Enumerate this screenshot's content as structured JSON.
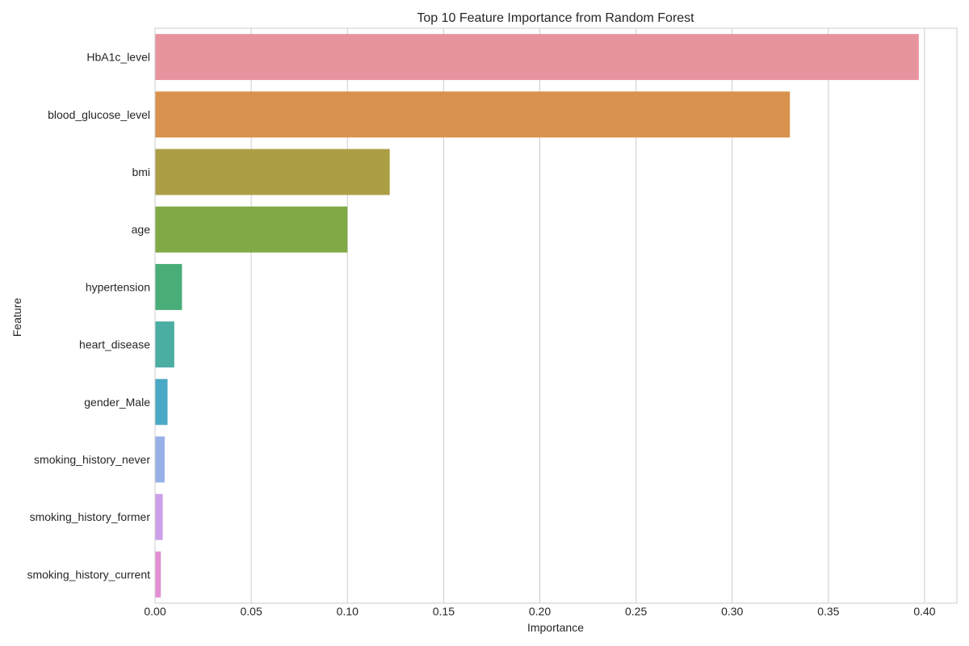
{
  "chart_data": {
    "type": "bar",
    "orientation": "horizontal",
    "title": "Top 10 Feature Importance from Random Forest",
    "xlabel": "Importance",
    "ylabel": "Feature",
    "xlim": [
      0,
      0.4168
    ],
    "xticks": [
      0.0,
      0.05,
      0.1,
      0.15,
      0.2,
      0.25,
      0.3,
      0.35,
      0.4
    ],
    "xtick_labels": [
      "0.00",
      "0.05",
      "0.10",
      "0.15",
      "0.20",
      "0.25",
      "0.30",
      "0.35",
      "0.40"
    ],
    "grid": "vertical",
    "categories": [
      "HbA1c_level",
      "blood_glucose_level",
      "bmi",
      "age",
      "hypertension",
      "heart_disease",
      "gender_Male",
      "smoking_history_never",
      "smoking_history_former",
      "smoking_history_current"
    ],
    "values": [
      0.397,
      0.33,
      0.122,
      0.1,
      0.014,
      0.01,
      0.0065,
      0.005,
      0.004,
      0.003
    ],
    "colors": [
      "#e8949f",
      "#d8924d",
      "#ab9e45",
      "#7faa45",
      "#48ad78",
      "#4aaea3",
      "#4aa9c4",
      "#97b1e8",
      "#cb9fe9",
      "#e48fd3"
    ]
  }
}
